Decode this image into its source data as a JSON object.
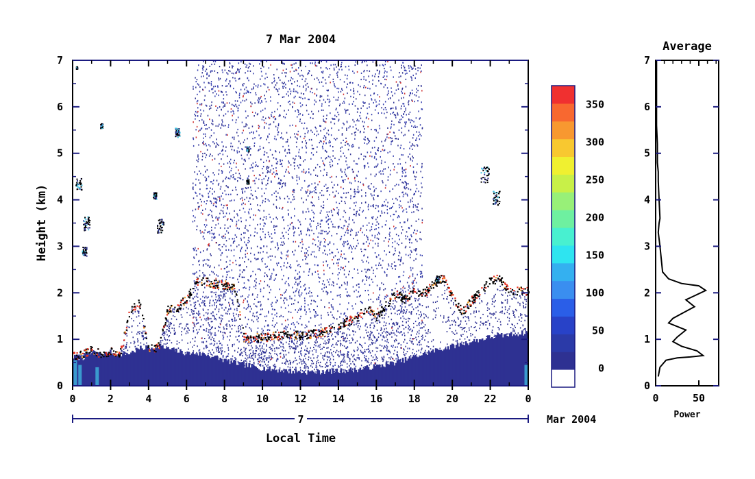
{
  "chart_data": [
    {
      "type": "heatmap",
      "title": "7 Mar 2004",
      "xlabel": "Local Time",
      "ylabel": "Height (km)",
      "x_ticks": [
        "0",
        "2",
        "4",
        "6",
        "8",
        "10",
        "12",
        "14",
        "16",
        "18",
        "20",
        "22",
        "0"
      ],
      "y_ticks": [
        "0",
        "1",
        "2",
        "3",
        "4",
        "5",
        "6",
        "7"
      ],
      "xlim": [
        0,
        24
      ],
      "ylim": [
        0,
        7
      ],
      "date_bar": {
        "label": "7",
        "suffix": "Mar 2004"
      },
      "features": {
        "noise_band_hours": [
          6.3,
          18.4
        ],
        "mixed_layer_top_km": [
          [
            0,
            0.62
          ],
          [
            0.5,
            0.6
          ],
          [
            1,
            0.7
          ],
          [
            1.5,
            0.65
          ],
          [
            2,
            0.72
          ],
          [
            2.5,
            0.68
          ],
          [
            3,
            0.7
          ],
          [
            3.5,
            0.8
          ],
          [
            4,
            0.82
          ],
          [
            4.5,
            0.85
          ],
          [
            5,
            0.8
          ],
          [
            5.5,
            0.75
          ],
          [
            6,
            0.7
          ],
          [
            7,
            0.68
          ],
          [
            8,
            0.55
          ],
          [
            9,
            0.45
          ],
          [
            10,
            0.38
          ],
          [
            11,
            0.33
          ],
          [
            12,
            0.3
          ],
          [
            13,
            0.3
          ],
          [
            14,
            0.32
          ],
          [
            15,
            0.35
          ],
          [
            16,
            0.42
          ],
          [
            17,
            0.5
          ],
          [
            18,
            0.62
          ],
          [
            19,
            0.75
          ],
          [
            20,
            0.85
          ],
          [
            21,
            0.95
          ],
          [
            22,
            1.05
          ],
          [
            23,
            1.1
          ],
          [
            24,
            1.15
          ]
        ],
        "aerosol_layer_top_km": [
          [
            0,
            0.65
          ],
          [
            0.5,
            0.7
          ],
          [
            1,
            0.78
          ],
          [
            1.5,
            0.7
          ],
          [
            2,
            0.75
          ],
          [
            2.5,
            0.72
          ],
          [
            3,
            1.65
          ],
          [
            3.5,
            1.8
          ],
          [
            4,
            0.8
          ],
          [
            4.5,
            0.85
          ],
          [
            5,
            1.65
          ],
          [
            5.5,
            1.7
          ],
          [
            6,
            1.9
          ],
          [
            6.5,
            2.25
          ],
          [
            7,
            2.25
          ],
          [
            7.5,
            2.2
          ],
          [
            8,
            2.18
          ],
          [
            8.5,
            2.12
          ],
          [
            9,
            1.05
          ],
          [
            10,
            1.05
          ],
          [
            11,
            1.1
          ],
          [
            12,
            1.1
          ],
          [
            13,
            1.15
          ],
          [
            14,
            1.3
          ],
          [
            15,
            1.5
          ],
          [
            15.5,
            1.7
          ],
          [
            16,
            1.5
          ],
          [
            16.5,
            1.75
          ],
          [
            17,
            2.0
          ],
          [
            17.5,
            1.85
          ],
          [
            18,
            2.05
          ],
          [
            18.5,
            2.0
          ],
          [
            19,
            2.2
          ],
          [
            19.5,
            2.35
          ],
          [
            20,
            1.9
          ],
          [
            20.5,
            1.6
          ],
          [
            21,
            1.85
          ],
          [
            21.5,
            2.05
          ],
          [
            22,
            2.3
          ],
          [
            22.5,
            2.3
          ],
          [
            23,
            2.05
          ],
          [
            23.5,
            2.05
          ],
          [
            24,
            2.05
          ]
        ]
      }
    },
    {
      "type": "colorbar",
      "tick_labels": [
        "0",
        "50",
        "100",
        "150",
        "200",
        "250",
        "300",
        "350"
      ],
      "tick_values": [
        0,
        50,
        100,
        150,
        200,
        250,
        300,
        350
      ],
      "range": [
        -25,
        375
      ],
      "colors": [
        "#ffffff",
        "#2e3192",
        "#2b3aa8",
        "#2842c8",
        "#2a5ee8",
        "#3a8ef0",
        "#34b0f0",
        "#2ee4f0",
        "#48f0d0",
        "#6ef0a0",
        "#98f078",
        "#c8f048",
        "#f0f030",
        "#f8c830",
        "#f89830",
        "#f86830",
        "#f03030"
      ]
    },
    {
      "type": "line",
      "title": "Average",
      "xlabel": "Power",
      "x_ticks": [
        "0",
        "50"
      ],
      "y_ticks": [
        "0",
        "1",
        "2",
        "3",
        "4",
        "5",
        "6",
        "7"
      ],
      "xlim": [
        0,
        73
      ],
      "ylim": [
        0,
        7
      ],
      "series": [
        {
          "x": [
            3,
            5,
            12,
            25,
            40,
            55,
            48,
            30,
            20,
            25,
            35,
            15,
            20,
            30,
            45,
            35,
            58,
            50,
            30,
            15,
            8,
            5,
            3,
            4,
            5,
            4,
            3,
            3,
            2,
            2,
            2,
            1,
            1,
            1,
            1
          ],
          "y": [
            0.2,
            0.4,
            0.55,
            0.6,
            0.62,
            0.65,
            0.75,
            0.85,
            0.95,
            1.05,
            1.2,
            1.35,
            1.45,
            1.55,
            1.7,
            1.85,
            2.05,
            2.15,
            2.2,
            2.3,
            2.45,
            3.0,
            3.3,
            3.5,
            3.6,
            4.0,
            4.4,
            4.6,
            4.8,
            5.0,
            5.2,
            5.6,
            6.0,
            6.5,
            7.0
          ]
        }
      ]
    }
  ]
}
